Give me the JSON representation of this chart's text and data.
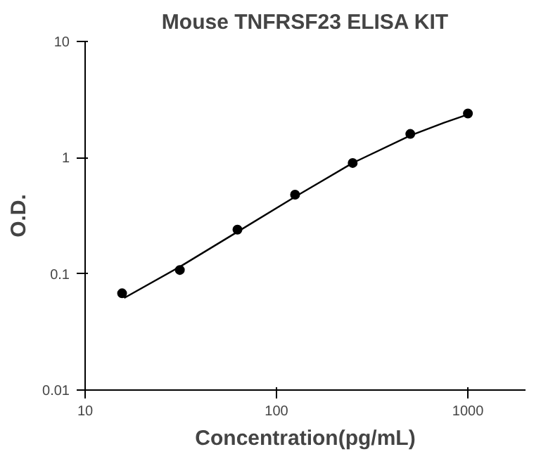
{
  "chart_data": {
    "type": "scatter",
    "title": "Mouse TNFRSF23 ELISA KIT",
    "xlabel": "Concentration(pg/mL)",
    "ylabel": "O.D.",
    "log": "xy",
    "xlim": [
      10,
      2000
    ],
    "ylim": [
      0.01,
      10
    ],
    "xticks": [
      10,
      100,
      1000
    ],
    "yticks": [
      0.01,
      0.1,
      1,
      10
    ],
    "grid": false,
    "series": [
      {
        "color": "#000000",
        "marker": "circle",
        "x": [
          15.6,
          31.25,
          62.5,
          125,
          250,
          500,
          1000
        ],
        "values": [
          0.068,
          0.108,
          0.24,
          0.48,
          0.9,
          1.6,
          2.4
        ]
      },
      {
        "type": "line",
        "color": "#000000",
        "marker": "none",
        "line_style": "solid",
        "x": [
          16,
          31.25,
          62.5,
          125,
          250,
          500,
          750,
          1000
        ],
        "values": [
          0.062,
          0.115,
          0.23,
          0.46,
          0.9,
          1.55,
          2.0,
          2.35
        ]
      }
    ]
  }
}
